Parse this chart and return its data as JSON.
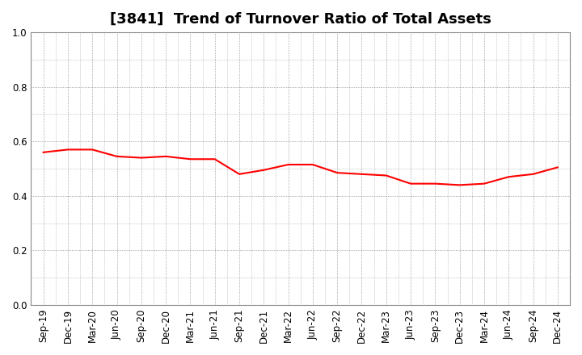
{
  "title": "[3841]  Trend of Turnover Ratio of Total Assets",
  "x_labels": [
    "Sep-19",
    "Dec-19",
    "Mar-20",
    "Jun-20",
    "Sep-20",
    "Dec-20",
    "Mar-21",
    "Jun-21",
    "Sep-21",
    "Dec-21",
    "Mar-22",
    "Jun-22",
    "Sep-22",
    "Dec-22",
    "Mar-23",
    "Jun-23",
    "Sep-23",
    "Dec-23",
    "Mar-24",
    "Jun-24",
    "Sep-24",
    "Dec-24"
  ],
  "y_values": [
    0.56,
    0.57,
    0.57,
    0.545,
    0.54,
    0.545,
    0.535,
    0.535,
    0.48,
    0.495,
    0.515,
    0.515,
    0.485,
    0.48,
    0.475,
    0.445,
    0.445,
    0.44,
    0.445,
    0.47,
    0.48,
    0.505
  ],
  "line_color": "#ff0000",
  "line_width": 1.5,
  "ylim": [
    0.0,
    1.0
  ],
  "yticks": [
    0.0,
    0.2,
    0.4,
    0.6,
    0.8,
    1.0
  ],
  "background_color": "#ffffff",
  "grid_color": "#888888",
  "title_fontsize": 13,
  "tick_fontsize": 8.5
}
